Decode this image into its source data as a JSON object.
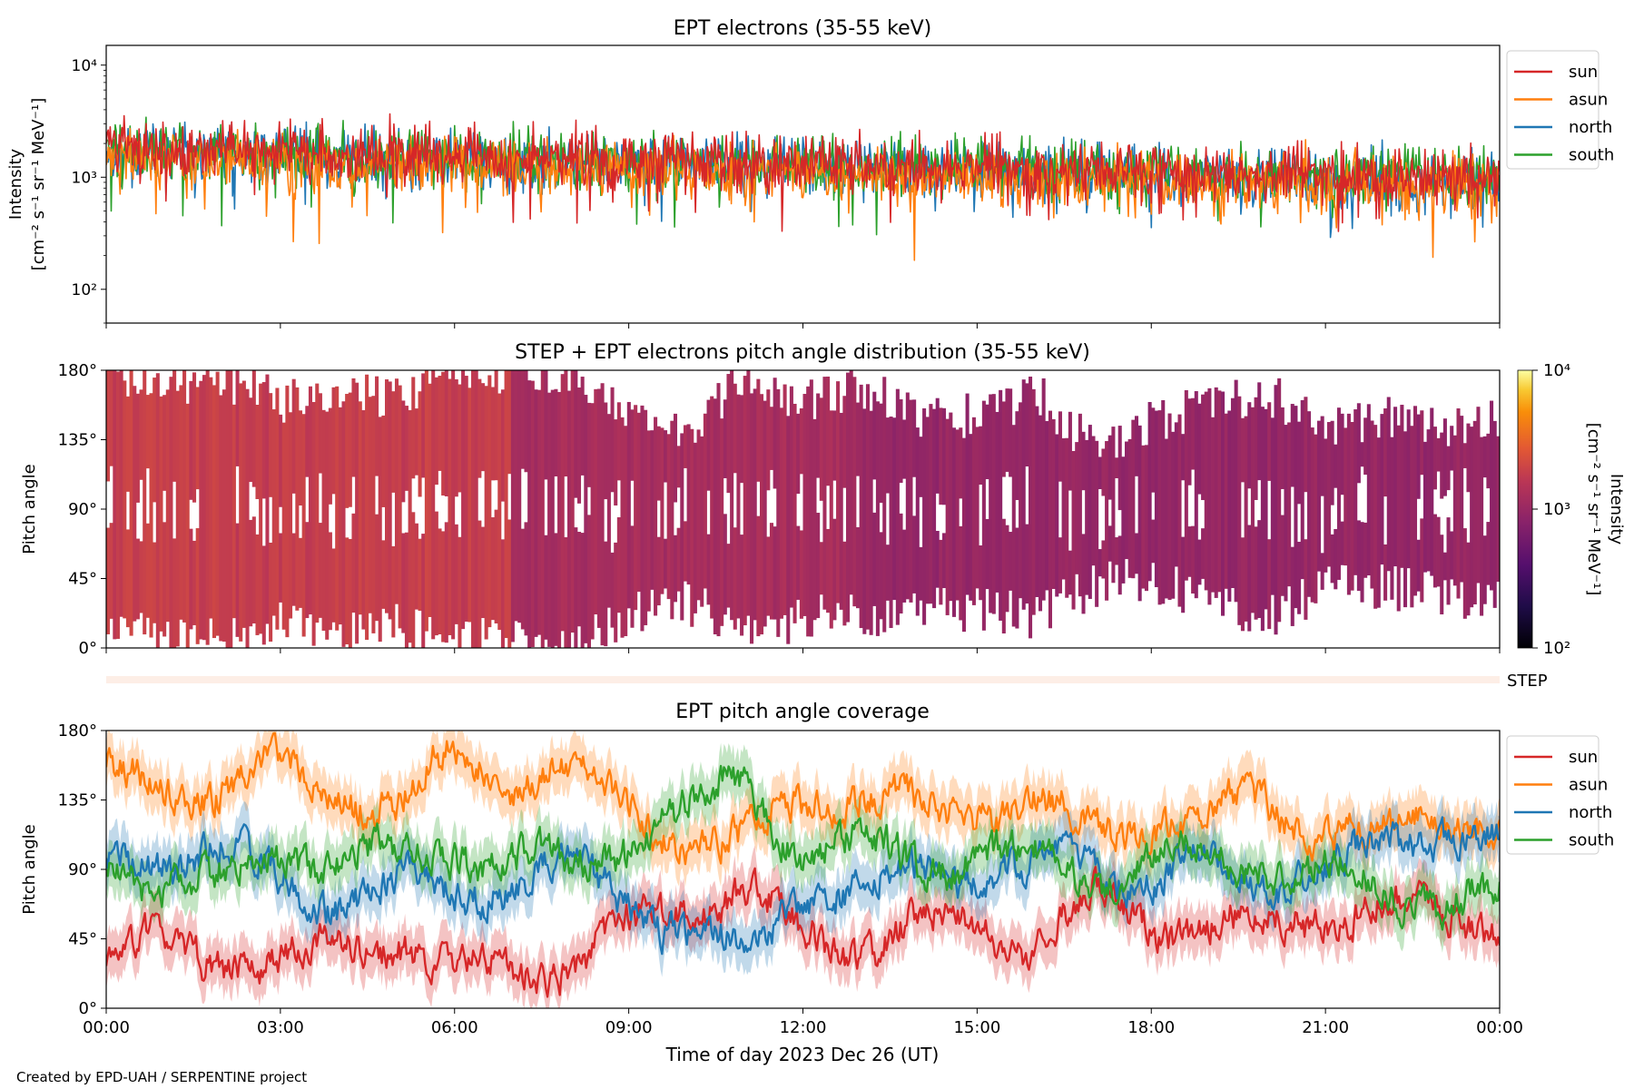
{
  "figure": {
    "credit": "Created by EPD-UAH / SERPENTINE project",
    "xlabel": "Time of day 2023 Dec 26 (UT)",
    "x_ticks": [
      "00:00",
      "03:00",
      "06:00",
      "09:00",
      "12:00",
      "15:00",
      "18:00",
      "21:00",
      "00:00"
    ]
  },
  "colors": {
    "sun": "#d62728",
    "asun": "#ff7f0e",
    "north": "#1f77b4",
    "south": "#2ca02c"
  },
  "chart_data": [
    {
      "type": "line",
      "title": "EPT electrons (35-55 keV)",
      "ylabel_line1": "Intensity",
      "ylabel_line2": "[cm⁻² s⁻¹ sr⁻¹ MeV⁻¹]",
      "yscale": "log",
      "ylim": [
        50,
        15000
      ],
      "y_ticks": [
        {
          "value": 100,
          "label": "10²"
        },
        {
          "value": 1000,
          "label": "10³"
        },
        {
          "value": 10000,
          "label": "10⁴"
        }
      ],
      "x_unit": "hours",
      "xlim": [
        0,
        24
      ],
      "legend": {
        "placement": "outside-right",
        "entries": [
          "sun",
          "asun",
          "north",
          "south"
        ]
      },
      "series": [
        {
          "name": "sun",
          "x": [
            0,
            1,
            2,
            3,
            4,
            5,
            6,
            7,
            8,
            9,
            10,
            11,
            12,
            13,
            14,
            15,
            16,
            17,
            18,
            19,
            20,
            21,
            22,
            23,
            24
          ],
          "values": [
            1900,
            1800,
            1850,
            1700,
            1600,
            1650,
            1550,
            1500,
            1500,
            1450,
            1400,
            1350,
            1350,
            1300,
            1250,
            1250,
            1200,
            1150,
            1100,
            1100,
            1050,
            1050,
            1000,
            1000,
            1000
          ]
        },
        {
          "name": "asun",
          "x": [
            0,
            1,
            2,
            3,
            4,
            5,
            6,
            7,
            8,
            9,
            10,
            11,
            12,
            13,
            14,
            15,
            16,
            17,
            18,
            19,
            20,
            21,
            22,
            23,
            24
          ],
          "values": [
            1500,
            1400,
            1450,
            1350,
            1300,
            1300,
            1250,
            1200,
            1200,
            1150,
            1150,
            1100,
            1100,
            1050,
            1000,
            1000,
            950,
            950,
            900,
            900,
            900,
            850,
            850,
            850,
            850
          ]
        },
        {
          "name": "north",
          "x": [
            0,
            1,
            2,
            3,
            4,
            5,
            6,
            7,
            8,
            9,
            10,
            11,
            12,
            13,
            14,
            15,
            16,
            17,
            18,
            19,
            20,
            21,
            22,
            23,
            24
          ],
          "values": [
            1700,
            1650,
            1700,
            1600,
            1500,
            1500,
            1450,
            1400,
            1400,
            1350,
            1400,
            1400,
            1300,
            1250,
            1200,
            1200,
            1150,
            1100,
            1050,
            1050,
            1000,
            1000,
            950,
            950,
            950
          ]
        },
        {
          "name": "south",
          "x": [
            0,
            1,
            2,
            3,
            4,
            5,
            6,
            7,
            8,
            9,
            10,
            11,
            12,
            13,
            14,
            15,
            16,
            17,
            18,
            19,
            20,
            21,
            22,
            23,
            24
          ],
          "values": [
            1800,
            1750,
            1750,
            1650,
            1550,
            1550,
            1500,
            1450,
            1450,
            1400,
            1350,
            1300,
            1300,
            1250,
            1200,
            1200,
            1150,
            1100,
            1100,
            1050,
            1050,
            1000,
            1000,
            1000,
            1000
          ]
        }
      ]
    },
    {
      "type": "heatmap",
      "title": "STEP + EPT electrons pitch angle distribution (35-55 keV)",
      "ylabel": "Pitch angle",
      "ylim": [
        0,
        180
      ],
      "y_ticks": [
        "0°",
        "45°",
        "90°",
        "135°",
        "180°"
      ],
      "xlim": [
        0,
        24
      ],
      "colorbar": {
        "label_line1": "Intensity",
        "label_line2": "[cm⁻² s⁻¹ sr⁻¹ MeV⁻¹]",
        "scale": "log",
        "range": [
          100,
          10000
        ],
        "ticks": [
          "10²",
          "10³",
          "10⁴"
        ],
        "colormap": "inferno"
      },
      "coverage": {
        "x": [
          0,
          1,
          2,
          3,
          4,
          5,
          6,
          7,
          8,
          9,
          10,
          11,
          12,
          13,
          14,
          15,
          16,
          17,
          18,
          19,
          20,
          21,
          22,
          23,
          24
        ],
        "lower_deg": [
          5,
          10,
          5,
          15,
          10,
          15,
          5,
          5,
          0,
          20,
          30,
          10,
          20,
          20,
          25,
          25,
          20,
          40,
          45,
          30,
          20,
          40,
          40,
          35,
          30
        ],
        "upper_deg": [
          175,
          170,
          175,
          160,
          165,
          160,
          175,
          180,
          180,
          155,
          140,
          175,
          160,
          170,
          150,
          150,
          165,
          130,
          145,
          160,
          165,
          140,
          150,
          145,
          150
        ]
      },
      "intensity_levels": [
        {
          "x_range": [
            0,
            7
          ],
          "value": 1800
        },
        {
          "x_range": [
            7,
            13
          ],
          "value": 1200
        },
        {
          "x_range": [
            13,
            24
          ],
          "value": 950
        }
      ],
      "sub_label": "STEP"
    },
    {
      "type": "line",
      "title": "EPT pitch angle coverage",
      "ylabel": "Pitch angle",
      "ylim": [
        0,
        180
      ],
      "y_ticks": [
        "0°",
        "45°",
        "90°",
        "135°",
        "180°"
      ],
      "xlim": [
        0,
        24
      ],
      "band_halfwidth_deg": 15,
      "legend": {
        "placement": "outside-right",
        "entries": [
          "sun",
          "asun",
          "north",
          "south"
        ]
      },
      "series": [
        {
          "name": "sun",
          "x": [
            0,
            1,
            2,
            3,
            4,
            5,
            6,
            7,
            8,
            9,
            10,
            11,
            12,
            13,
            14,
            15,
            16,
            17,
            18,
            19,
            20,
            21,
            22,
            23,
            24
          ],
          "values": [
            30,
            40,
            35,
            25,
            40,
            45,
            20,
            30,
            25,
            50,
            70,
            75,
            45,
            40,
            55,
            50,
            45,
            70,
            55,
            55,
            50,
            60,
            70,
            55,
            60
          ]
        },
        {
          "name": "asun",
          "x": [
            0,
            1,
            2,
            3,
            4,
            5,
            6,
            7,
            8,
            9,
            10,
            11,
            12,
            13,
            14,
            15,
            16,
            17,
            18,
            19,
            20,
            21,
            22,
            23,
            24
          ],
          "values": [
            150,
            140,
            145,
            155,
            140,
            135,
            160,
            150,
            155,
            130,
            110,
            105,
            135,
            140,
            125,
            130,
            135,
            110,
            125,
            125,
            130,
            120,
            110,
            125,
            120
          ]
        },
        {
          "name": "north",
          "x": [
            0,
            1,
            2,
            3,
            4,
            5,
            6,
            7,
            8,
            9,
            10,
            11,
            12,
            13,
            14,
            15,
            16,
            17,
            18,
            19,
            20,
            21,
            22,
            23,
            24
          ],
          "values": [
            90,
            100,
            105,
            80,
            70,
            80,
            75,
            85,
            90,
            70,
            50,
            30,
            80,
            75,
            90,
            90,
            85,
            95,
            85,
            90,
            85,
            90,
            100,
            120,
            110
          ]
        },
        {
          "name": "south",
          "x": [
            0,
            1,
            2,
            3,
            4,
            5,
            6,
            7,
            8,
            9,
            10,
            11,
            12,
            13,
            14,
            15,
            16,
            17,
            18,
            19,
            20,
            21,
            22,
            23,
            24
          ],
          "values": [
            90,
            85,
            80,
            100,
            100,
            95,
            105,
            95,
            90,
            110,
            125,
            150,
            100,
            105,
            95,
            100,
            95,
            85,
            95,
            100,
            95,
            85,
            80,
            70,
            70
          ]
        }
      ]
    }
  ]
}
